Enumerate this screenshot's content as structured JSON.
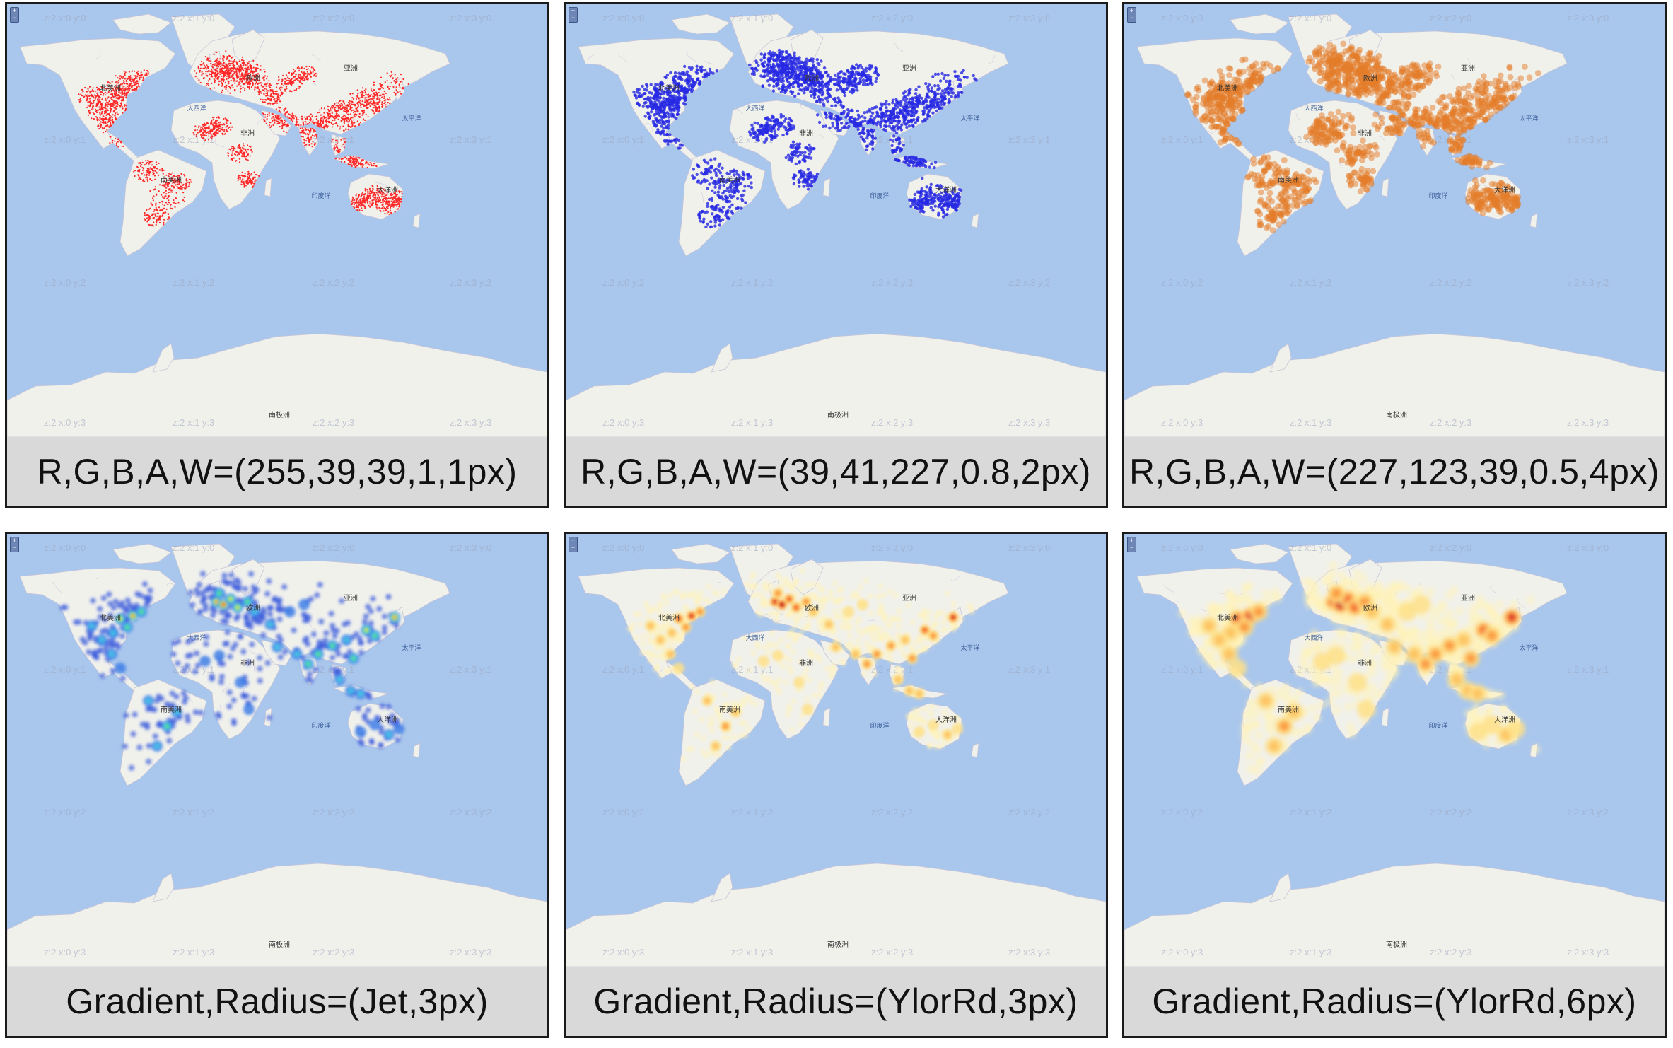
{
  "colors": {
    "ocean": "#a9c6ec",
    "land": "#f1f1ec",
    "border": "#c9c5d6",
    "caption_bg": "#d9d9d9"
  },
  "map": {
    "labels": {
      "north_america": "北美洲",
      "south_america": "南美洲",
      "europe": "欧洲",
      "africa": "非洲",
      "asia": "亚洲",
      "oceania": "大洋洲",
      "antarctica": "南极洲",
      "atlantic": "大西洋",
      "pacific": "太平洋",
      "indian": "印度洋"
    },
    "tiles": {
      "row0": [
        "z:2 x:0 y:0",
        "z:2 x:1 y:0",
        "z:2 x:2 y:0",
        "z:2 x:3 y:0"
      ],
      "row1": [
        "z:2 x:0 y:1",
        "z:2 x:1 y:1",
        "z:2 x:2 y:1",
        "z:2 x:3 y:1"
      ],
      "row2": [
        "z:2 x:0 y:2",
        "z:2 x:1 y:2",
        "z:2 x:2 y:2",
        "z:2 x:3 y:2"
      ],
      "row3": [
        "z:2 x:0 y:3",
        "z:2 x:1 y:3",
        "z:2 x:2 y:3",
        "z:2 x:3 y:3"
      ]
    }
  },
  "panels": [
    {
      "caption": "R,G,B,A,W=(255,39,39,1,1px)",
      "mode": "point",
      "color": "#ff2727",
      "opacity": 1,
      "size": 1
    },
    {
      "caption": "R,G,B,A,W=(39,41,227,0.8,2px)",
      "mode": "point",
      "color": "#2729e3",
      "opacity": 0.8,
      "size": 2
    },
    {
      "caption": "R,G,B,A,W=(227,123,39,0.5,4px)",
      "mode": "point",
      "color": "#e37b27",
      "opacity": 0.5,
      "size": 4
    },
    {
      "caption": "Gradient,Radius=(Jet,3px)",
      "mode": "heat",
      "gradient": "Jet",
      "radius": 3
    },
    {
      "caption": "Gradient,Radius=(YlorRd,3px)",
      "mode": "heat",
      "gradient": "YlorRd",
      "radius": 3
    },
    {
      "caption": "Gradient,Radius=(YlorRd,6px)",
      "mode": "heat",
      "gradient": "YlorRd",
      "radius": 6
    }
  ]
}
